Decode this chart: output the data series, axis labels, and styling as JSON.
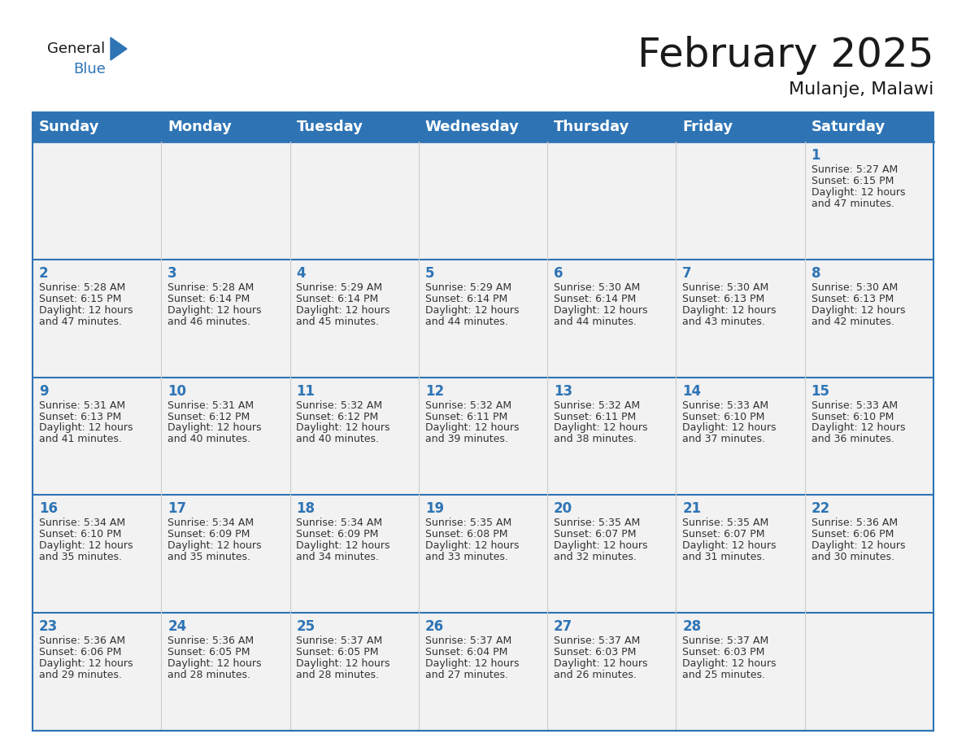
{
  "title": "February 2025",
  "subtitle": "Mulanje, Malawi",
  "header_color": "#2E74B5",
  "header_text_color": "#FFFFFF",
  "cell_bg_color": "#F2F2F2",
  "border_color": "#2E74B5",
  "cell_border_color": "#CCCCCC",
  "day_names": [
    "Sunday",
    "Monday",
    "Tuesday",
    "Wednesday",
    "Thursday",
    "Friday",
    "Saturday"
  ],
  "title_fontsize": 36,
  "subtitle_fontsize": 16,
  "header_fontsize": 13,
  "day_num_fontsize": 12,
  "cell_fontsize": 9.0,
  "days": [
    {
      "day": 1,
      "col": 6,
      "row": 0,
      "sunrise": "5:27 AM",
      "sunset": "6:15 PM",
      "daylight_hours": 12,
      "daylight_minutes": 47
    },
    {
      "day": 2,
      "col": 0,
      "row": 1,
      "sunrise": "5:28 AM",
      "sunset": "6:15 PM",
      "daylight_hours": 12,
      "daylight_minutes": 47
    },
    {
      "day": 3,
      "col": 1,
      "row": 1,
      "sunrise": "5:28 AM",
      "sunset": "6:14 PM",
      "daylight_hours": 12,
      "daylight_minutes": 46
    },
    {
      "day": 4,
      "col": 2,
      "row": 1,
      "sunrise": "5:29 AM",
      "sunset": "6:14 PM",
      "daylight_hours": 12,
      "daylight_minutes": 45
    },
    {
      "day": 5,
      "col": 3,
      "row": 1,
      "sunrise": "5:29 AM",
      "sunset": "6:14 PM",
      "daylight_hours": 12,
      "daylight_minutes": 44
    },
    {
      "day": 6,
      "col": 4,
      "row": 1,
      "sunrise": "5:30 AM",
      "sunset": "6:14 PM",
      "daylight_hours": 12,
      "daylight_minutes": 44
    },
    {
      "day": 7,
      "col": 5,
      "row": 1,
      "sunrise": "5:30 AM",
      "sunset": "6:13 PM",
      "daylight_hours": 12,
      "daylight_minutes": 43
    },
    {
      "day": 8,
      "col": 6,
      "row": 1,
      "sunrise": "5:30 AM",
      "sunset": "6:13 PM",
      "daylight_hours": 12,
      "daylight_minutes": 42
    },
    {
      "day": 9,
      "col": 0,
      "row": 2,
      "sunrise": "5:31 AM",
      "sunset": "6:13 PM",
      "daylight_hours": 12,
      "daylight_minutes": 41
    },
    {
      "day": 10,
      "col": 1,
      "row": 2,
      "sunrise": "5:31 AM",
      "sunset": "6:12 PM",
      "daylight_hours": 12,
      "daylight_minutes": 40
    },
    {
      "day": 11,
      "col": 2,
      "row": 2,
      "sunrise": "5:32 AM",
      "sunset": "6:12 PM",
      "daylight_hours": 12,
      "daylight_minutes": 40
    },
    {
      "day": 12,
      "col": 3,
      "row": 2,
      "sunrise": "5:32 AM",
      "sunset": "6:11 PM",
      "daylight_hours": 12,
      "daylight_minutes": 39
    },
    {
      "day": 13,
      "col": 4,
      "row": 2,
      "sunrise": "5:32 AM",
      "sunset": "6:11 PM",
      "daylight_hours": 12,
      "daylight_minutes": 38
    },
    {
      "day": 14,
      "col": 5,
      "row": 2,
      "sunrise": "5:33 AM",
      "sunset": "6:10 PM",
      "daylight_hours": 12,
      "daylight_minutes": 37
    },
    {
      "day": 15,
      "col": 6,
      "row": 2,
      "sunrise": "5:33 AM",
      "sunset": "6:10 PM",
      "daylight_hours": 12,
      "daylight_minutes": 36
    },
    {
      "day": 16,
      "col": 0,
      "row": 3,
      "sunrise": "5:34 AM",
      "sunset": "6:10 PM",
      "daylight_hours": 12,
      "daylight_minutes": 35
    },
    {
      "day": 17,
      "col": 1,
      "row": 3,
      "sunrise": "5:34 AM",
      "sunset": "6:09 PM",
      "daylight_hours": 12,
      "daylight_minutes": 35
    },
    {
      "day": 18,
      "col": 2,
      "row": 3,
      "sunrise": "5:34 AM",
      "sunset": "6:09 PM",
      "daylight_hours": 12,
      "daylight_minutes": 34
    },
    {
      "day": 19,
      "col": 3,
      "row": 3,
      "sunrise": "5:35 AM",
      "sunset": "6:08 PM",
      "daylight_hours": 12,
      "daylight_minutes": 33
    },
    {
      "day": 20,
      "col": 4,
      "row": 3,
      "sunrise": "5:35 AM",
      "sunset": "6:07 PM",
      "daylight_hours": 12,
      "daylight_minutes": 32
    },
    {
      "day": 21,
      "col": 5,
      "row": 3,
      "sunrise": "5:35 AM",
      "sunset": "6:07 PM",
      "daylight_hours": 12,
      "daylight_minutes": 31
    },
    {
      "day": 22,
      "col": 6,
      "row": 3,
      "sunrise": "5:36 AM",
      "sunset": "6:06 PM",
      "daylight_hours": 12,
      "daylight_minutes": 30
    },
    {
      "day": 23,
      "col": 0,
      "row": 4,
      "sunrise": "5:36 AM",
      "sunset": "6:06 PM",
      "daylight_hours": 12,
      "daylight_minutes": 29
    },
    {
      "day": 24,
      "col": 1,
      "row": 4,
      "sunrise": "5:36 AM",
      "sunset": "6:05 PM",
      "daylight_hours": 12,
      "daylight_minutes": 28
    },
    {
      "day": 25,
      "col": 2,
      "row": 4,
      "sunrise": "5:37 AM",
      "sunset": "6:05 PM",
      "daylight_hours": 12,
      "daylight_minutes": 28
    },
    {
      "day": 26,
      "col": 3,
      "row": 4,
      "sunrise": "5:37 AM",
      "sunset": "6:04 PM",
      "daylight_hours": 12,
      "daylight_minutes": 27
    },
    {
      "day": 27,
      "col": 4,
      "row": 4,
      "sunrise": "5:37 AM",
      "sunset": "6:03 PM",
      "daylight_hours": 12,
      "daylight_minutes": 26
    },
    {
      "day": 28,
      "col": 5,
      "row": 4,
      "sunrise": "5:37 AM",
      "sunset": "6:03 PM",
      "daylight_hours": 12,
      "daylight_minutes": 25
    }
  ],
  "num_rows": 5,
  "logo_text_general": "General",
  "logo_text_blue": "Blue",
  "logo_color_general": "#1a1a1a",
  "logo_color_blue": "#2E74B5",
  "logo_triangle_color": "#2E74B5"
}
